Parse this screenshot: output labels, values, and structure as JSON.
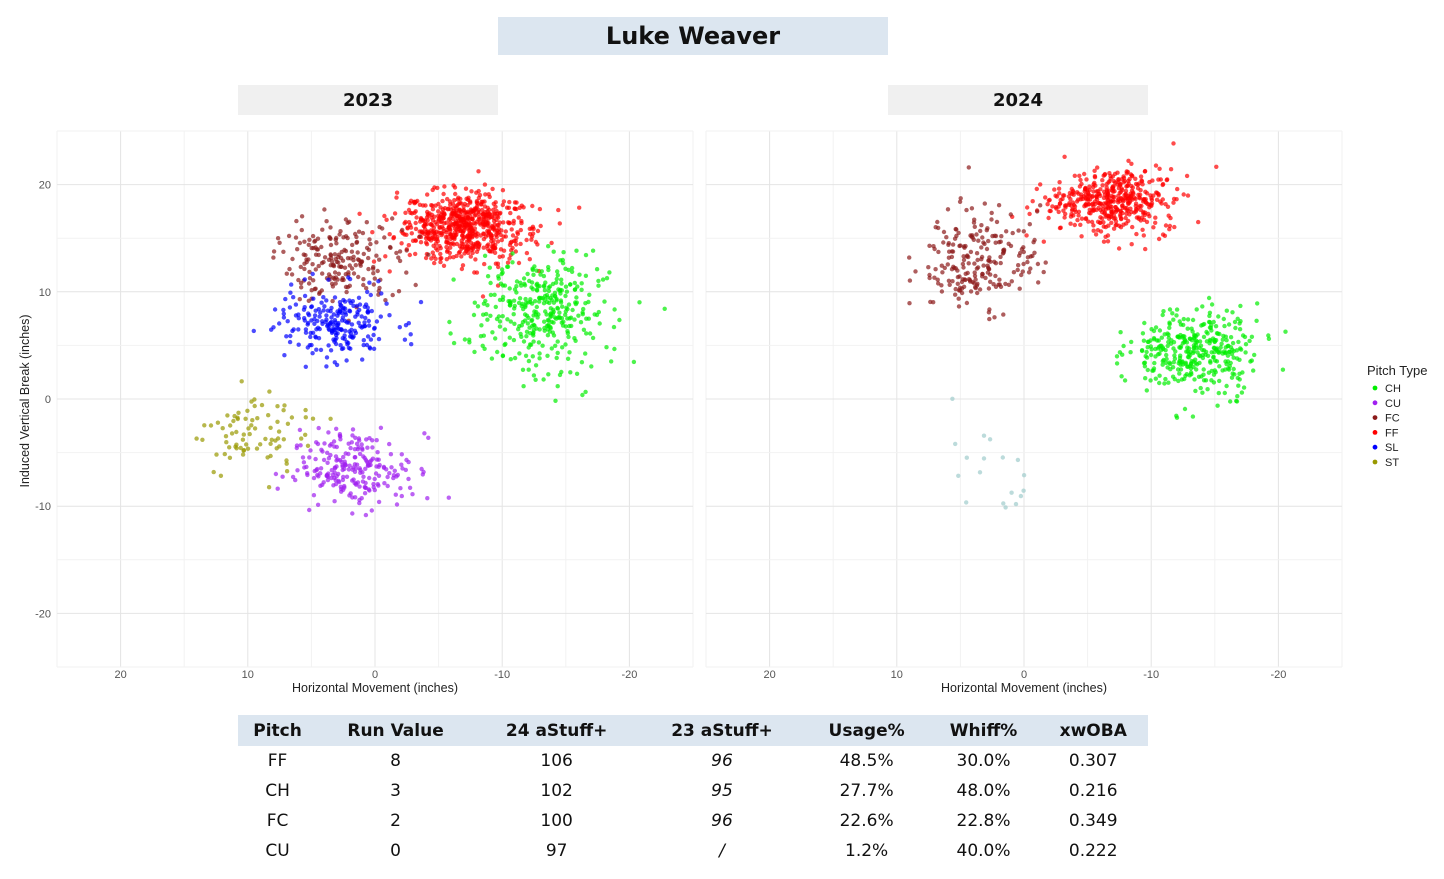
{
  "title": "Luke Weaver",
  "panels": [
    {
      "year": "2023"
    },
    {
      "year": "2024"
    }
  ],
  "chart_data": {
    "type": "scatter",
    "title": "Luke Weaver",
    "xlabel": "Horizontal Movement (inches)",
    "ylabel": "Induced Vertical Break (inches)",
    "xlim": [
      25,
      -25
    ],
    "ylim": [
      -25,
      25
    ],
    "x_ticks": [
      20,
      10,
      0,
      -10,
      -20
    ],
    "y_ticks": [
      20,
      10,
      0,
      -10,
      -20
    ],
    "grid": true,
    "legend": {
      "title": "Pitch Type",
      "position": "right",
      "entries": [
        {
          "label": "CH",
          "color": "#00ee00"
        },
        {
          "label": "CU",
          "color": "#a020f0"
        },
        {
          "label": "FC",
          "color": "#8b1a1a"
        },
        {
          "label": "FF",
          "color": "#ff0000"
        },
        {
          "label": "SL",
          "color": "#0000ff"
        },
        {
          "label": "ST",
          "color": "#999900"
        }
      ]
    },
    "panels": [
      {
        "year": "2023",
        "clusters": [
          {
            "pitch": "FF",
            "color": "#ff0000",
            "cx": -7,
            "cy": 16,
            "sx": 2.6,
            "sy": 1.6,
            "n": 650
          },
          {
            "pitch": "FC",
            "color": "#8b1a1a",
            "cx": 2.5,
            "cy": 13,
            "sx": 2.3,
            "sy": 2.0,
            "n": 200
          },
          {
            "pitch": "CH",
            "color": "#00ee00",
            "cx": -13,
            "cy": 8,
            "sx": 2.6,
            "sy": 2.6,
            "n": 360
          },
          {
            "pitch": "SL",
            "color": "#0000ff",
            "cx": 3,
            "cy": 7,
            "sx": 2.2,
            "sy": 1.6,
            "n": 230
          },
          {
            "pitch": "CU",
            "color": "#a020f0",
            "cx": 1.5,
            "cy": -6.5,
            "sx": 2.2,
            "sy": 1.8,
            "n": 230
          },
          {
            "pitch": "ST",
            "color": "#999900",
            "cx": 9.5,
            "cy": -3,
            "sx": 2.3,
            "sy": 2.2,
            "n": 80
          }
        ]
      },
      {
        "year": "2024",
        "clusters": [
          {
            "pitch": "FF",
            "color": "#ff0000",
            "cx": -7,
            "cy": 18.5,
            "sx": 2.4,
            "sy": 1.5,
            "n": 460
          },
          {
            "pitch": "FC",
            "color": "#8b1a1a",
            "cx": 3.5,
            "cy": 13,
            "sx": 2.3,
            "sy": 2.4,
            "n": 220
          },
          {
            "pitch": "CH",
            "color": "#00ee00",
            "cx": -13.5,
            "cy": 4.5,
            "sx": 2.4,
            "sy": 2.0,
            "n": 360
          },
          {
            "pitch": "CU",
            "color": "#a0cccc",
            "cx": 4,
            "cy": -6.5,
            "sx": 2.0,
            "sy": 2.4,
            "n": 18
          }
        ]
      }
    ]
  },
  "table": {
    "headers": [
      "Pitch",
      "Run Value",
      "24 aStuff+",
      "23 aStuff+",
      "Usage%",
      "Whiff%",
      "xwOBA"
    ],
    "rows": [
      [
        "FF",
        "8",
        "106",
        "96",
        "48.5%",
        "30.0%",
        "0.307"
      ],
      [
        "CH",
        "3",
        "102",
        "95",
        "27.7%",
        "48.0%",
        "0.216"
      ],
      [
        "FC",
        "2",
        "100",
        "96",
        "22.6%",
        "22.8%",
        "0.349"
      ],
      [
        "CU",
        "0",
        "97",
        "/",
        "1.2%",
        "40.0%",
        "0.222"
      ]
    ]
  }
}
